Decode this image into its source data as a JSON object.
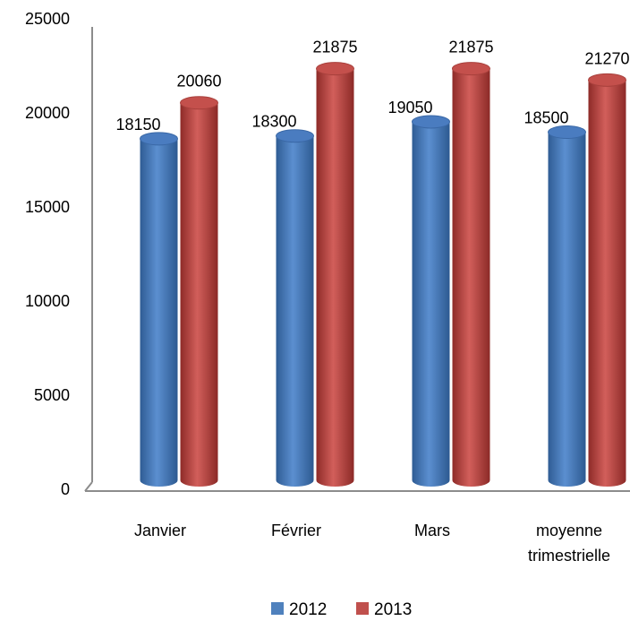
{
  "chart_data": {
    "type": "bar",
    "categories": [
      "Janvier",
      "Février",
      "Mars",
      "moyenne\ntrimestrielle"
    ],
    "series": [
      {
        "name": "2012",
        "values": [
          18150,
          18300,
          19050,
          18500
        ],
        "color": "#4f81bd"
      },
      {
        "name": "2013",
        "values": [
          20060,
          21875,
          21875,
          21270
        ],
        "color": "#c0504d"
      }
    ],
    "ylim": [
      0,
      25000
    ],
    "yticks": [
      0,
      5000,
      10000,
      15000,
      20000,
      25000
    ],
    "legend": "bottom",
    "grid": false,
    "style": "3d-cylinder"
  }
}
